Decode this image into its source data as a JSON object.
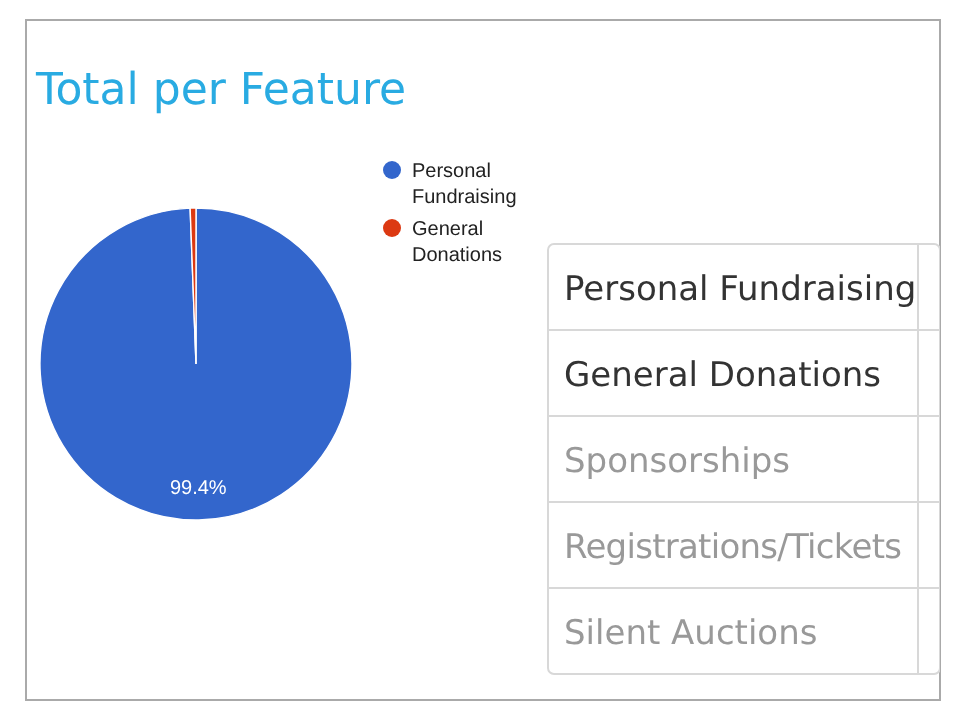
{
  "chart_data": [
    {
      "type": "pie",
      "title": "Total per Feature",
      "categories": [
        "Personal Fundraising",
        "General Donations"
      ],
      "values": [
        99.4,
        0.6
      ],
      "colors": [
        "#3366cc",
        "#dc3912"
      ],
      "value_labels": [
        "99.4%",
        null
      ],
      "legend": "right"
    },
    {
      "type": "other",
      "categories": [
        "Personal Fundraising",
        "General Donations",
        "Sponsorships",
        "Registrations/Tickets",
        "Silent Auctions"
      ]
    }
  ]
}
